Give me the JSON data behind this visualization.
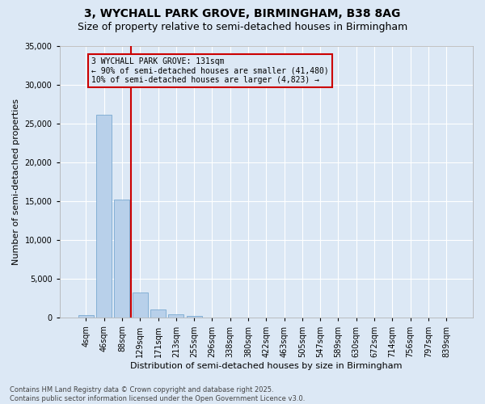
{
  "title_line1": "3, WYCHALL PARK GROVE, BIRMINGHAM, B38 8AG",
  "title_line2": "Size of property relative to semi-detached houses in Birmingham",
  "xlabel": "Distribution of semi-detached houses by size in Birmingham",
  "ylabel": "Number of semi-detached properties",
  "categories": [
    "4sqm",
    "46sqm",
    "88sqm",
    "129sqm",
    "171sqm",
    "213sqm",
    "255sqm",
    "296sqm",
    "338sqm",
    "380sqm",
    "422sqm",
    "463sqm",
    "505sqm",
    "547sqm",
    "589sqm",
    "630sqm",
    "672sqm",
    "714sqm",
    "756sqm",
    "797sqm",
    "839sqm"
  ],
  "values": [
    400,
    26100,
    15200,
    3300,
    1100,
    500,
    200,
    50,
    0,
    0,
    0,
    0,
    0,
    0,
    0,
    0,
    0,
    0,
    0,
    0,
    0
  ],
  "bar_color": "#b8d0ea",
  "bar_edge_color": "#6a9fcb",
  "bg_color": "#dce8f5",
  "grid_color": "#ffffff",
  "vline_color": "#cc0000",
  "vline_pos": 2.5,
  "annotation_text": "3 WYCHALL PARK GROVE: 131sqm\n← 90% of semi-detached houses are smaller (41,480)\n10% of semi-detached houses are larger (4,823) →",
  "annotation_box_color": "#cc0000",
  "ylim": [
    0,
    35000
  ],
  "yticks": [
    0,
    5000,
    10000,
    15000,
    20000,
    25000,
    30000,
    35000
  ],
  "footnote": "Contains HM Land Registry data © Crown copyright and database right 2025.\nContains public sector information licensed under the Open Government Licence v3.0.",
  "title_fontsize": 10,
  "subtitle_fontsize": 9,
  "label_fontsize": 8,
  "tick_fontsize": 7,
  "annotation_fontsize": 7,
  "footnote_fontsize": 6
}
